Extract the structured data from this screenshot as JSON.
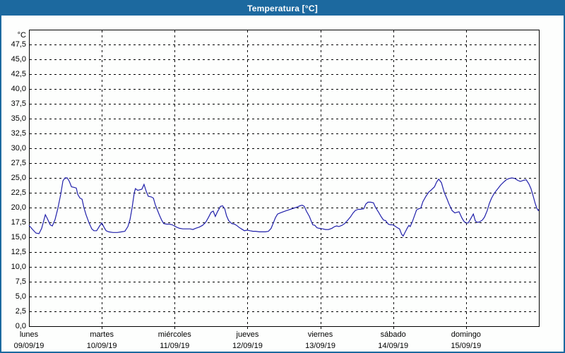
{
  "window": {
    "title": "Temperatura [°C]"
  },
  "colors": {
    "titlebar": "#1c699f",
    "window_border": "#1c699f",
    "line": "#2020aa",
    "grid": "#000000",
    "background": "#fdfefd"
  },
  "chart_data": {
    "type": "line",
    "title": "Temperatura [°C]",
    "legend": "none",
    "grid": "dashed",
    "y_axis": {
      "unit": "°C",
      "min": 0,
      "max": 50,
      "tick_step": 2.5,
      "tick_labels": [
        "0,0",
        "2,5",
        "5,0",
        "7,5",
        "10,0",
        "12,5",
        "15,0",
        "17,5",
        "20,0",
        "22,5",
        "25,0",
        "27,5",
        "30,0",
        "32,5",
        "35,0",
        "37,5",
        "40,0",
        "42,5",
        "45,0",
        "47,5"
      ]
    },
    "x_axis": {
      "range_hours": [
        0,
        168
      ],
      "day_tick_step_hours": 24,
      "days": [
        {
          "name": "lunes",
          "date": "09/09/19"
        },
        {
          "name": "martes",
          "date": "10/09/19"
        },
        {
          "name": "miércoles",
          "date": "11/09/19"
        },
        {
          "name": "jueves",
          "date": "12/09/19"
        },
        {
          "name": "viernes",
          "date": "13/09/19"
        },
        {
          "name": "sábado",
          "date": "14/09/19"
        },
        {
          "name": "domingo",
          "date": "15/09/19"
        }
      ]
    },
    "series": [
      {
        "name": "Temperatura",
        "color": "#2020aa",
        "points": [
          [
            0.0,
            17.0
          ],
          [
            1.2,
            16.3
          ],
          [
            2.3,
            15.7
          ],
          [
            3.3,
            15.6
          ],
          [
            4.2,
            16.5
          ],
          [
            5.4,
            18.8
          ],
          [
            6.0,
            18.2
          ],
          [
            7.0,
            17.1
          ],
          [
            7.7,
            16.9
          ],
          [
            8.6,
            18.0
          ],
          [
            9.5,
            19.8
          ],
          [
            10.5,
            22.3
          ],
          [
            11.2,
            24.5
          ],
          [
            11.9,
            25.0
          ],
          [
            12.6,
            25.0
          ],
          [
            13.3,
            24.4
          ],
          [
            14.0,
            23.5
          ],
          [
            14.9,
            23.4
          ],
          [
            15.6,
            23.3
          ],
          [
            16.1,
            22.2
          ],
          [
            16.8,
            21.6
          ],
          [
            17.5,
            21.4
          ],
          [
            18.1,
            20.0
          ],
          [
            18.8,
            18.8
          ],
          [
            19.8,
            17.4
          ],
          [
            20.7,
            16.4
          ],
          [
            21.4,
            16.1
          ],
          [
            22.3,
            16.1
          ],
          [
            23.3,
            16.9
          ],
          [
            24.0,
            17.4
          ],
          [
            24.7,
            16.7
          ],
          [
            25.4,
            16.1
          ],
          [
            26.3,
            15.9
          ],
          [
            27.7,
            15.8
          ],
          [
            29.1,
            15.8
          ],
          [
            30.5,
            15.9
          ],
          [
            31.6,
            16.0
          ],
          [
            32.6,
            16.8
          ],
          [
            33.3,
            18.0
          ],
          [
            34.0,
            20.0
          ],
          [
            34.7,
            22.5
          ],
          [
            35.1,
            23.2
          ],
          [
            35.8,
            22.9
          ],
          [
            36.5,
            23.0
          ],
          [
            37.2,
            23.1
          ],
          [
            37.9,
            23.9
          ],
          [
            38.6,
            22.8
          ],
          [
            39.3,
            21.9
          ],
          [
            40.3,
            21.8
          ],
          [
            41.0,
            21.6
          ],
          [
            41.6,
            20.5
          ],
          [
            42.3,
            19.6
          ],
          [
            43.0,
            18.7
          ],
          [
            43.7,
            17.9
          ],
          [
            44.4,
            17.3
          ],
          [
            45.4,
            17.2
          ],
          [
            46.3,
            17.2
          ],
          [
            47.2,
            17.1
          ],
          [
            47.9,
            16.9
          ],
          [
            48.6,
            16.7
          ],
          [
            49.6,
            16.5
          ],
          [
            50.7,
            16.4
          ],
          [
            51.9,
            16.4
          ],
          [
            53.1,
            16.4
          ],
          [
            54.0,
            16.3
          ],
          [
            54.9,
            16.5
          ],
          [
            56.1,
            16.7
          ],
          [
            57.2,
            17.0
          ],
          [
            58.2,
            17.5
          ],
          [
            59.1,
            18.3
          ],
          [
            60.0,
            19.2
          ],
          [
            60.7,
            19.4
          ],
          [
            61.4,
            18.5
          ],
          [
            62.1,
            19.3
          ],
          [
            63.1,
            20.2
          ],
          [
            63.8,
            20.3
          ],
          [
            64.5,
            19.8
          ],
          [
            65.1,
            18.6
          ],
          [
            65.8,
            17.8
          ],
          [
            66.8,
            17.3
          ],
          [
            67.7,
            17.2
          ],
          [
            68.4,
            17.0
          ],
          [
            69.1,
            16.7
          ],
          [
            70.0,
            16.4
          ],
          [
            71.0,
            16.1
          ],
          [
            71.9,
            16.2
          ],
          [
            72.8,
            16.1
          ],
          [
            73.8,
            16.0
          ],
          [
            74.7,
            16.0
          ],
          [
            75.9,
            15.9
          ],
          [
            76.8,
            15.9
          ],
          [
            77.9,
            15.9
          ],
          [
            78.9,
            16.0
          ],
          [
            79.8,
            16.5
          ],
          [
            80.5,
            17.4
          ],
          [
            81.2,
            18.3
          ],
          [
            81.9,
            18.9
          ],
          [
            82.8,
            19.1
          ],
          [
            83.8,
            19.3
          ],
          [
            84.9,
            19.5
          ],
          [
            86.1,
            19.7
          ],
          [
            87.3,
            19.9
          ],
          [
            88.4,
            20.1
          ],
          [
            89.3,
            20.3
          ],
          [
            90.0,
            20.4
          ],
          [
            90.7,
            20.2
          ],
          [
            91.4,
            19.4
          ],
          [
            92.4,
            18.5
          ],
          [
            93.1,
            17.6
          ],
          [
            93.5,
            17.1
          ],
          [
            94.2,
            17.0
          ],
          [
            94.9,
            16.6
          ],
          [
            95.6,
            16.5
          ],
          [
            96.8,
            16.4
          ],
          [
            97.7,
            16.3
          ],
          [
            98.7,
            16.3
          ],
          [
            99.8,
            16.5
          ],
          [
            100.7,
            16.8
          ],
          [
            101.4,
            16.9
          ],
          [
            102.1,
            16.8
          ],
          [
            103.1,
            17.0
          ],
          [
            104.0,
            17.3
          ],
          [
            104.9,
            17.8
          ],
          [
            105.9,
            18.4
          ],
          [
            106.8,
            19.1
          ],
          [
            107.5,
            19.5
          ],
          [
            108.4,
            19.7
          ],
          [
            109.3,
            19.7
          ],
          [
            110.3,
            19.8
          ],
          [
            111.0,
            20.6
          ],
          [
            111.7,
            20.9
          ],
          [
            112.6,
            20.9
          ],
          [
            113.5,
            20.8
          ],
          [
            114.2,
            20.0
          ],
          [
            115.2,
            19.2
          ],
          [
            116.1,
            18.4
          ],
          [
            116.8,
            17.9
          ],
          [
            117.5,
            17.8
          ],
          [
            118.4,
            17.2
          ],
          [
            119.1,
            17.1
          ],
          [
            119.8,
            17.1
          ],
          [
            120.5,
            16.9
          ],
          [
            121.4,
            16.6
          ],
          [
            122.1,
            16.4
          ],
          [
            122.8,
            15.5
          ],
          [
            123.3,
            15.2
          ],
          [
            124.0,
            15.9
          ],
          [
            124.7,
            16.6
          ],
          [
            125.2,
            17.0
          ],
          [
            125.6,
            16.8
          ],
          [
            126.3,
            17.6
          ],
          [
            127.0,
            18.6
          ],
          [
            127.7,
            19.6
          ],
          [
            128.4,
            19.8
          ],
          [
            129.1,
            19.9
          ],
          [
            129.8,
            21.0
          ],
          [
            130.8,
            21.9
          ],
          [
            131.7,
            22.6
          ],
          [
            132.6,
            23.0
          ],
          [
            133.6,
            23.5
          ],
          [
            134.3,
            24.3
          ],
          [
            135.0,
            24.8
          ],
          [
            135.9,
            24.2
          ],
          [
            136.8,
            22.6
          ],
          [
            137.7,
            21.5
          ],
          [
            138.4,
            20.6
          ],
          [
            139.4,
            19.5
          ],
          [
            140.3,
            19.1
          ],
          [
            141.0,
            19.2
          ],
          [
            141.7,
            19.3
          ],
          [
            142.6,
            18.3
          ],
          [
            143.3,
            17.7
          ],
          [
            144.0,
            17.4
          ],
          [
            144.7,
            17.4
          ],
          [
            145.4,
            18.0
          ],
          [
            146.4,
            18.9
          ],
          [
            147.1,
            17.7
          ],
          [
            147.8,
            17.5
          ],
          [
            148.5,
            17.6
          ],
          [
            149.4,
            17.9
          ],
          [
            150.1,
            18.4
          ],
          [
            151.0,
            19.5
          ],
          [
            151.7,
            20.7
          ],
          [
            152.4,
            21.6
          ],
          [
            153.3,
            22.4
          ],
          [
            154.5,
            23.2
          ],
          [
            155.4,
            23.8
          ],
          [
            156.4,
            24.3
          ],
          [
            157.3,
            24.7
          ],
          [
            158.2,
            24.9
          ],
          [
            159.1,
            25.0
          ],
          [
            160.1,
            24.9
          ],
          [
            161.0,
            24.6
          ],
          [
            161.9,
            24.4
          ],
          [
            162.9,
            24.6
          ],
          [
            163.8,
            24.7
          ],
          [
            164.7,
            24.0
          ],
          [
            165.4,
            23.2
          ],
          [
            166.1,
            22.0
          ],
          [
            166.8,
            20.7
          ],
          [
            167.3,
            19.9
          ],
          [
            167.8,
            19.5
          ],
          [
            168.0,
            19.7
          ]
        ]
      }
    ]
  }
}
